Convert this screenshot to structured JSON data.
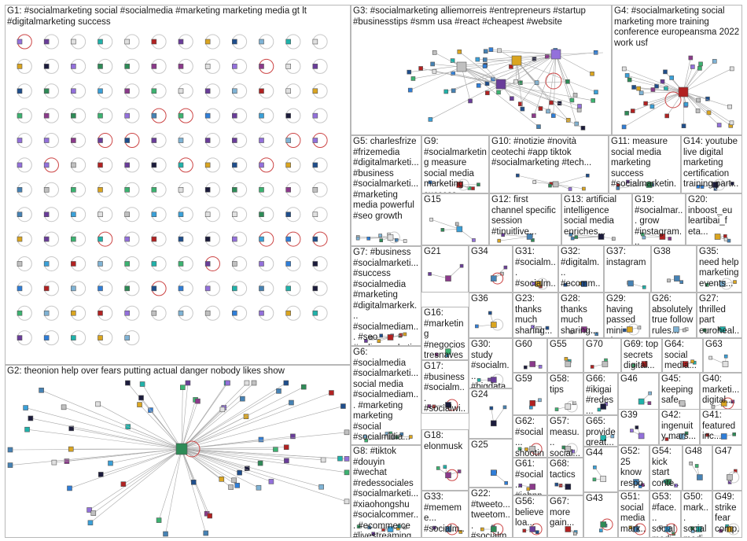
{
  "groups": [
    {
      "id": "G1",
      "label": "G1: #socialmarketing social #socialmedia #marketing marketing media gt lt #digitalmarketing success"
    },
    {
      "id": "G2",
      "label": "G2: theonion help over fears putting actual danger nobody likes show"
    },
    {
      "id": "G3",
      "label": "G3: #socialmarketing alliemorreis #entrepreneurs #startup #businesstips #smm usa #react #cheapest #website"
    },
    {
      "id": "G4",
      "label": "G4: #socialmarketing social marketing more training conference europeansma 2022 work usf"
    },
    {
      "id": "G5",
      "label": "G5: charlesfrize #frizemedia #digitalmarketi... #business #socialmarketi... #marketing media powerful #seo growth"
    },
    {
      "id": "G9",
      "label": "G9: #socialmarketing measure social media marketing success #success #socialmedia #marketing best"
    },
    {
      "id": "G10",
      "label": "G10: #notizie #novità ceotechi #app tiktok #socialmarketing #tech..."
    },
    {
      "id": "G11",
      "label": "G11: measure social media marketing success #socialmarketin..."
    },
    {
      "id": "G14",
      "label": "G14: youtube live digital marketing certification training part..."
    },
    {
      "id": "G15",
      "label": "G15"
    },
    {
      "id": "G12",
      "label": "G12: first channel specific session #tinuitlive..."
    },
    {
      "id": "G13",
      "label": "G13: artificial intelligence social media enriches..."
    },
    {
      "id": "G19",
      "label": "G19: #socialmar... grow #instagram..."
    },
    {
      "id": "G20",
      "label": "G20: inboost_eu leartibai_f eta..."
    },
    {
      "id": "G7",
      "label": "G7: #business #socialmarketi... #success #socialmedia #marketing #digitalmarkerk... #socialmediam... #seo #onlinemarketi..."
    },
    {
      "id": "G21",
      "label": "G21"
    },
    {
      "id": "G34",
      "label": "G34"
    },
    {
      "id": "G31",
      "label": "G31: #socialm... #socialm... instagra..."
    },
    {
      "id": "G32",
      "label": "G32: #digitalm... #ecomm... #mcomm..."
    },
    {
      "id": "G37",
      "label": "G37: instagram"
    },
    {
      "id": "G38",
      "label": "G38"
    },
    {
      "id": "G35",
      "label": "G35: need help marketing events..."
    },
    {
      "id": "G36",
      "label": "G36"
    },
    {
      "id": "G23",
      "label": "G23: thanks much sharing..."
    },
    {
      "id": "G28",
      "label": "G28: thanks much sharing..."
    },
    {
      "id": "G29",
      "label": "G29: having passed mini viva..."
    },
    {
      "id": "G26",
      "label": "G26: absolutely true follow rules..."
    },
    {
      "id": "G27",
      "label": "G27: thrilled part euroheal..."
    },
    {
      "id": "G16",
      "label": "G16: #marketing #negocios tresnaves conocé..."
    },
    {
      "id": "G6",
      "label": "G6: #socialmedia #socialmarketi... social media #socialmediam... #marketing marketing #social #socialmidia..."
    },
    {
      "id": "G30",
      "label": "G30: study #socialm... #bigdata..."
    },
    {
      "id": "G60",
      "label": "G60"
    },
    {
      "id": "G55",
      "label": "G55"
    },
    {
      "id": "G70",
      "label": "G70"
    },
    {
      "id": "G69",
      "label": "G69: top secrets digital..."
    },
    {
      "id": "G64",
      "label": "G64: social media..."
    },
    {
      "id": "G63",
      "label": "G63"
    },
    {
      "id": "G17",
      "label": "G17: #business #socialm... #socialwi... #socialm..."
    },
    {
      "id": "G59",
      "label": "G59"
    },
    {
      "id": "G58",
      "label": "G58: tips"
    },
    {
      "id": "G66",
      "label": "G66: #ikigai #redes..."
    },
    {
      "id": "G46",
      "label": "G46"
    },
    {
      "id": "G45",
      "label": "G45: keeping safe"
    },
    {
      "id": "G40",
      "label": "G40: marketi... digital..."
    },
    {
      "id": "G24",
      "label": "G24"
    },
    {
      "id": "G62",
      "label": "G62: #social... shootin..."
    },
    {
      "id": "G57",
      "label": "G57: measu... social..."
    },
    {
      "id": "G65",
      "label": "G65: provide great..."
    },
    {
      "id": "G39",
      "label": "G39"
    },
    {
      "id": "G42",
      "label": "G42: ingenuity mars..."
    },
    {
      "id": "G41",
      "label": "G41: featured inc..."
    },
    {
      "id": "G18",
      "label": "G18: elonmusk"
    },
    {
      "id": "G25",
      "label": "G25"
    },
    {
      "id": "G52",
      "label": "G52: 25 know respo..."
    },
    {
      "id": "G54",
      "label": "G54: kick start conte..."
    },
    {
      "id": "G48",
      "label": "G48"
    },
    {
      "id": "G47",
      "label": "G47"
    },
    {
      "id": "G8",
      "label": "G8: #tiktok #douyin #wechat #redessociales #socialmarketi... #xiaohongshu #socialcommer... #ecommerce #livestreaming..."
    },
    {
      "id": "G61",
      "label": "G61: #social... #johnn..."
    },
    {
      "id": "G68",
      "label": "G68: tactics"
    },
    {
      "id": "G44",
      "label": "G44"
    },
    {
      "id": "G33",
      "label": "G33: #mememe... #socialm... #digitalm..."
    },
    {
      "id": "G22",
      "label": "G22: #tweeto... tweetom... #socialm..."
    },
    {
      "id": "G56",
      "label": "G56: believe loa..."
    },
    {
      "id": "G67",
      "label": "G67: more gain..."
    },
    {
      "id": "G43",
      "label": "G43"
    },
    {
      "id": "G51",
      "label": "G51: social media mark..."
    },
    {
      "id": "G53",
      "label": "G53: #face... social medi..."
    },
    {
      "id": "G50",
      "label": "G50: mark... social medi..."
    },
    {
      "id": "G49",
      "label": "G49: strike fear comp..."
    }
  ],
  "colors": {
    "border": "#b8b8b8",
    "edge": "#a8a8a8",
    "self_loop": "#cc4444",
    "node_palette": [
      "#1f4e8c",
      "#2f7ed8",
      "#3aa0d8",
      "#6a3d9a",
      "#8b3a8b",
      "#2e8b57",
      "#3cb371",
      "#7fb3d5",
      "#e0e0e0",
      "#1c1c3c",
      "#b22222",
      "#daa520",
      "#20b2aa",
      "#4682b4",
      "#9370db",
      "#c0c0c0"
    ]
  }
}
